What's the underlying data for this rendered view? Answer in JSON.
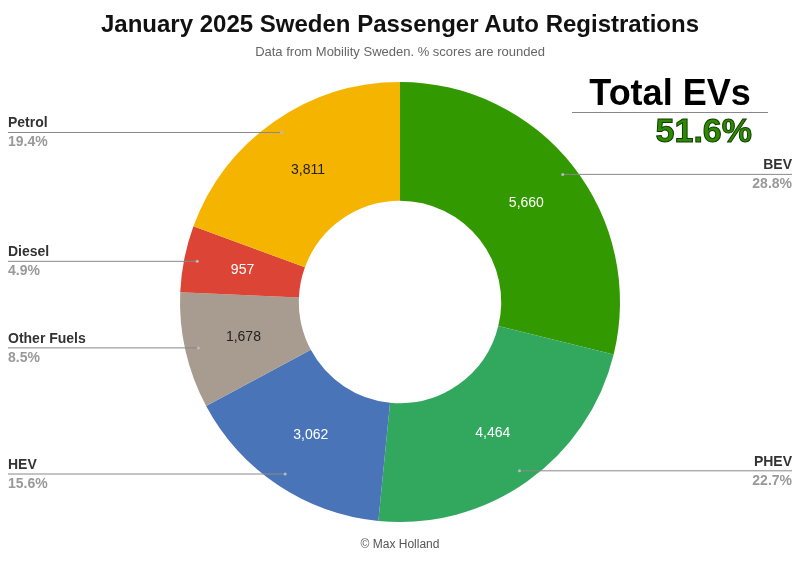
{
  "chart_data": {
    "type": "doughnut",
    "title": "January 2025 Sweden Passenger Auto Registrations",
    "subtitle": "Data from Mobility Sweden. % scores are rounded",
    "categories": [
      "BEV",
      "PHEV",
      "HEV",
      "Other Fuels",
      "Diesel",
      "Petrol"
    ],
    "values": [
      5660,
      4464,
      3062,
      1678,
      957,
      3811
    ],
    "value_labels": [
      "5,660",
      "4,464",
      "3,062",
      "1,678",
      "957",
      "3,811"
    ],
    "share_labels": [
      "28.8%",
      "22.7%",
      "15.6%",
      "8.5%",
      "4.9%",
      "19.4%"
    ],
    "colors": [
      "#339900",
      "#32a85f",
      "#4a74b8",
      "#a89b8f",
      "#dc4535",
      "#f4b400"
    ],
    "data_labels": true,
    "annotations": [
      "Total EVs",
      "51.6%"
    ],
    "credit": "© Max Holland"
  }
}
